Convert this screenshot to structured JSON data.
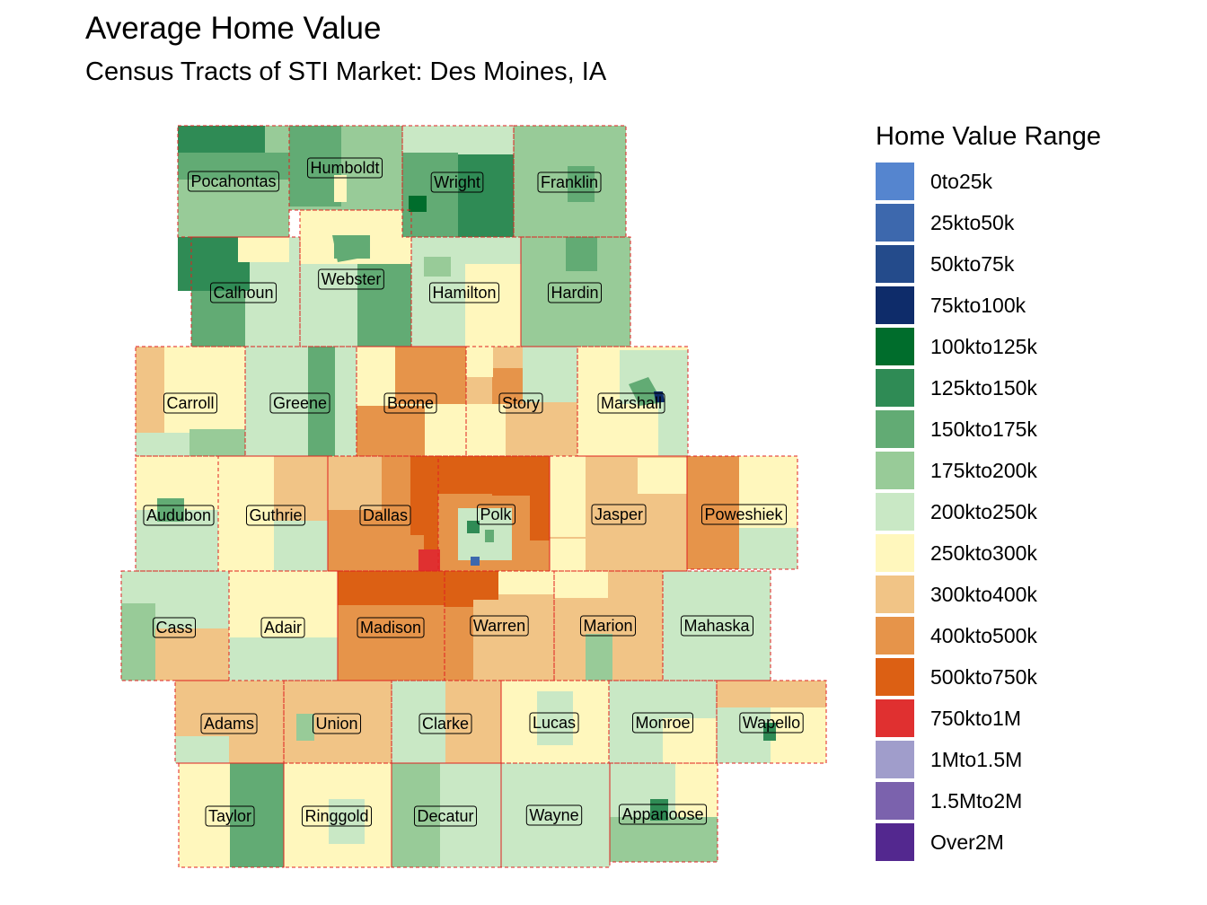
{
  "title": "Average Home Value",
  "subtitle": "Census Tracts of STI Market: Des Moines, IA",
  "legend": {
    "title": "Home Value Range",
    "items": [
      {
        "label": "0to25k",
        "color": "#5585cf"
      },
      {
        "label": "25kto50k",
        "color": "#3d68ad"
      },
      {
        "label": "50kto75k",
        "color": "#244b8b"
      },
      {
        "label": "75kto100k",
        "color": "#0e2c6a"
      },
      {
        "label": "100kto125k",
        "color": "#006d2c"
      },
      {
        "label": "125kto150k",
        "color": "#2f8b55"
      },
      {
        "label": "150kto175k",
        "color": "#62ab74"
      },
      {
        "label": "175kto200k",
        "color": "#98cb98"
      },
      {
        "label": "200kto250k",
        "color": "#c9e8c5"
      },
      {
        "label": "250kto300k",
        "color": "#fff7bd"
      },
      {
        "label": "300kto400k",
        "color": "#f1c486"
      },
      {
        "label": "400kto500k",
        "color": "#e6944a"
      },
      {
        "label": "500kto750k",
        "color": "#dc6014"
      },
      {
        "label": "750kto1M",
        "color": "#e03030"
      },
      {
        "label": "1Mto1.5M",
        "color": "#a09dcb"
      },
      {
        "label": "1.5Mto2M",
        "color": "#7b62ad"
      },
      {
        "label": "Over2M",
        "color": "#53288f"
      }
    ]
  },
  "counties": [
    {
      "name": "Pocahontas"
    },
    {
      "name": "Humboldt"
    },
    {
      "name": "Wright"
    },
    {
      "name": "Franklin"
    },
    {
      "name": "Calhoun"
    },
    {
      "name": "Webster"
    },
    {
      "name": "Hamilton"
    },
    {
      "name": "Hardin"
    },
    {
      "name": "Carroll"
    },
    {
      "name": "Greene"
    },
    {
      "name": "Boone"
    },
    {
      "name": "Story"
    },
    {
      "name": "Marshall"
    },
    {
      "name": "Audubon"
    },
    {
      "name": "Guthrie"
    },
    {
      "name": "Dallas"
    },
    {
      "name": "Polk"
    },
    {
      "name": "Jasper"
    },
    {
      "name": "Poweshiek"
    },
    {
      "name": "Cass"
    },
    {
      "name": "Adair"
    },
    {
      "name": "Madison"
    },
    {
      "name": "Warren"
    },
    {
      "name": "Marion"
    },
    {
      "name": "Mahaska"
    },
    {
      "name": "Adams"
    },
    {
      "name": "Union"
    },
    {
      "name": "Clarke"
    },
    {
      "name": "Lucas"
    },
    {
      "name": "Monroe"
    },
    {
      "name": "Wapello"
    },
    {
      "name": "Taylor"
    },
    {
      "name": "Ringgold"
    },
    {
      "name": "Decatur"
    },
    {
      "name": "Wayne"
    },
    {
      "name": "Appanoose"
    }
  ]
}
